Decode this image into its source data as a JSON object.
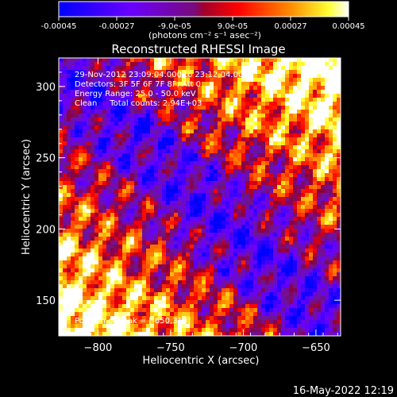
{
  "colorbar": {
    "ticks": [
      "-0.00045",
      "-0.00027",
      "-9.0e-05",
      "9.0e-05",
      "0.00027",
      "0.00045"
    ],
    "tick_values": [
      -0.00045,
      -0.00027,
      -9e-05,
      9e-05,
      0.00027,
      0.00045
    ],
    "range": [
      -0.00045,
      0.00045
    ],
    "units_label": "(photons cm⁻² s⁻¹ asec⁻²)",
    "colors": [
      "#0000ff",
      "#6a00ff",
      "#8b1a8b",
      "#ff0000",
      "#ff7a00",
      "#ffff00",
      "#ffffff"
    ]
  },
  "chart_data": {
    "type": "heatmap",
    "title": "Reconstructed RHESSI Image",
    "xlabel": "Heliocentric X (arcsec)",
    "ylabel": "Heliocentric Y (arcsec)",
    "xlim": [
      -827,
      -633
    ],
    "ylim": [
      125,
      320
    ],
    "x_ticks": [
      -800,
      -750,
      -700,
      -650
    ],
    "x_tick_labels": [
      "−800",
      "−750",
      "−700",
      "−650"
    ],
    "y_ticks": [
      150,
      200,
      250,
      300
    ],
    "y_tick_labels": [
      "150",
      "200",
      "250",
      "300"
    ],
    "peak_position": [
      -650,
      314
    ],
    "annotations": [
      "29-Nov-2012 23:09:04.000 to 23:12:04.000",
      "Detectors: 3F 5F 6F 7F 8F, Att 0",
      "Energy Range: 25.0 - 50.0 keV",
      "Clean     Total counts: 2.94E+03"
    ],
    "peak_label": "Position of Peak = [-650,314]"
  },
  "footer": {
    "timestamp": "16-May-2022 12:19"
  }
}
